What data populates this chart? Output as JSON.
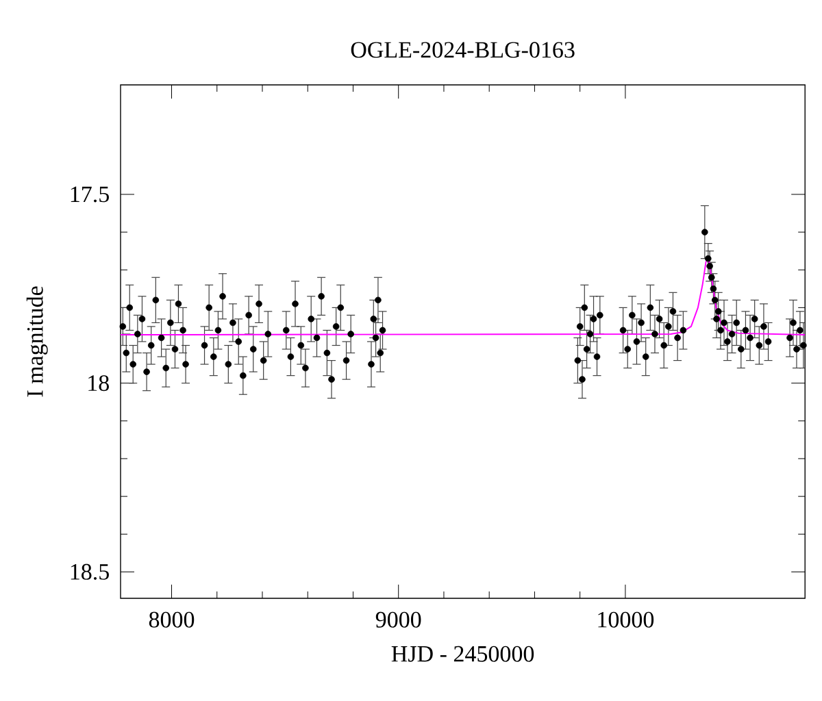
{
  "chart_data": {
    "type": "scatter",
    "title": "OGLE-2024-BLG-0163",
    "xlabel": "HJD - 2450000",
    "ylabel": "I magnitude",
    "xlim": [
      7775,
      10792
    ],
    "ylim": [
      18.57,
      17.21
    ],
    "xticks": [
      8000,
      9000,
      10000
    ],
    "yticks": [
      17.5,
      18,
      18.5
    ],
    "marker": "circle",
    "series": [
      {
        "type": "line",
        "color": "#ff00ff",
        "marker": "none",
        "x": [
          7775,
          10200,
          10250,
          10290,
          10320,
          10340,
          10355,
          10362,
          10370,
          10385,
          10400,
          10420,
          10450,
          10500,
          10792
        ],
        "values": [
          17.872,
          17.87,
          17.865,
          17.85,
          17.8,
          17.74,
          17.68,
          17.665,
          17.68,
          17.74,
          17.8,
          17.84,
          17.86,
          17.868,
          17.872
        ]
      },
      {
        "color": "#000000",
        "x": [
          7785,
          7800,
          7815,
          7830,
          7850,
          7870,
          7890,
          7910,
          7930,
          7955,
          7975,
          7995,
          8015,
          8030,
          8050,
          8062,
          8145,
          8165,
          8185,
          8205,
          8225,
          8250,
          8270,
          8295,
          8315,
          8340,
          8360,
          8385,
          8405,
          8425,
          8505,
          8525,
          8545,
          8570,
          8590,
          8615,
          8640,
          8660,
          8685,
          8705,
          8725,
          8745,
          8770,
          8790,
          8880,
          8890,
          8900,
          8910,
          8920,
          8930,
          9790,
          9800,
          9810,
          9820,
          9830,
          9845,
          9860,
          9875,
          9888,
          9990,
          10010,
          10030,
          10050,
          10070,
          10090,
          10110,
          10130,
          10150,
          10170,
          10190,
          10210,
          10230,
          10255,
          10350,
          10365,
          10372,
          10380,
          10388,
          10395,
          10402,
          10410,
          10420,
          10435,
          10450,
          10470,
          10490,
          10510,
          10530,
          10550,
          10570,
          10590,
          10610,
          10630,
          10725,
          10740,
          10755,
          10770,
          10785
        ],
        "values": [
          17.85,
          17.92,
          17.8,
          17.95,
          17.87,
          17.83,
          17.97,
          17.9,
          17.78,
          17.88,
          17.96,
          17.84,
          17.91,
          17.79,
          17.86,
          17.95,
          17.9,
          17.8,
          17.93,
          17.86,
          17.77,
          17.95,
          17.84,
          17.89,
          17.98,
          17.82,
          17.91,
          17.79,
          17.94,
          17.87,
          17.86,
          17.93,
          17.79,
          17.9,
          17.96,
          17.83,
          17.88,
          17.77,
          17.92,
          17.99,
          17.85,
          17.8,
          17.94,
          17.87,
          17.95,
          17.83,
          17.88,
          17.78,
          17.92,
          17.86,
          17.94,
          17.85,
          17.99,
          17.8,
          17.91,
          17.87,
          17.83,
          17.93,
          17.82,
          17.86,
          17.91,
          17.82,
          17.89,
          17.84,
          17.93,
          17.8,
          17.87,
          17.83,
          17.9,
          17.85,
          17.81,
          17.88,
          17.86,
          17.6,
          17.67,
          17.69,
          17.72,
          17.75,
          17.78,
          17.83,
          17.81,
          17.86,
          17.84,
          17.89,
          17.87,
          17.84,
          17.91,
          17.86,
          17.88,
          17.83,
          17.9,
          17.85,
          17.89,
          17.88,
          17.84,
          17.91,
          17.86,
          17.9
        ],
        "errors": [
          0.05,
          0.05,
          0.06,
          0.05,
          0.05,
          0.06,
          0.05,
          0.05,
          0.06,
          0.05,
          0.05,
          0.06,
          0.05,
          0.05,
          0.06,
          0.05,
          0.05,
          0.06,
          0.05,
          0.05,
          0.06,
          0.05,
          0.05,
          0.06,
          0.05,
          0.05,
          0.06,
          0.05,
          0.05,
          0.06,
          0.05,
          0.05,
          0.06,
          0.05,
          0.05,
          0.06,
          0.05,
          0.05,
          0.06,
          0.05,
          0.05,
          0.06,
          0.05,
          0.05,
          0.06,
          0.05,
          0.05,
          0.06,
          0.05,
          0.05,
          0.06,
          0.05,
          0.05,
          0.06,
          0.05,
          0.05,
          0.06,
          0.05,
          0.05,
          0.06,
          0.05,
          0.05,
          0.06,
          0.05,
          0.05,
          0.06,
          0.05,
          0.05,
          0.06,
          0.05,
          0.05,
          0.06,
          0.05,
          0.07,
          0.04,
          0.04,
          0.04,
          0.04,
          0.05,
          0.05,
          0.05,
          0.05,
          0.06,
          0.05,
          0.05,
          0.06,
          0.05,
          0.05,
          0.06,
          0.05,
          0.05,
          0.06,
          0.05,
          0.05,
          0.06,
          0.05,
          0.05,
          0.06
        ]
      }
    ]
  }
}
